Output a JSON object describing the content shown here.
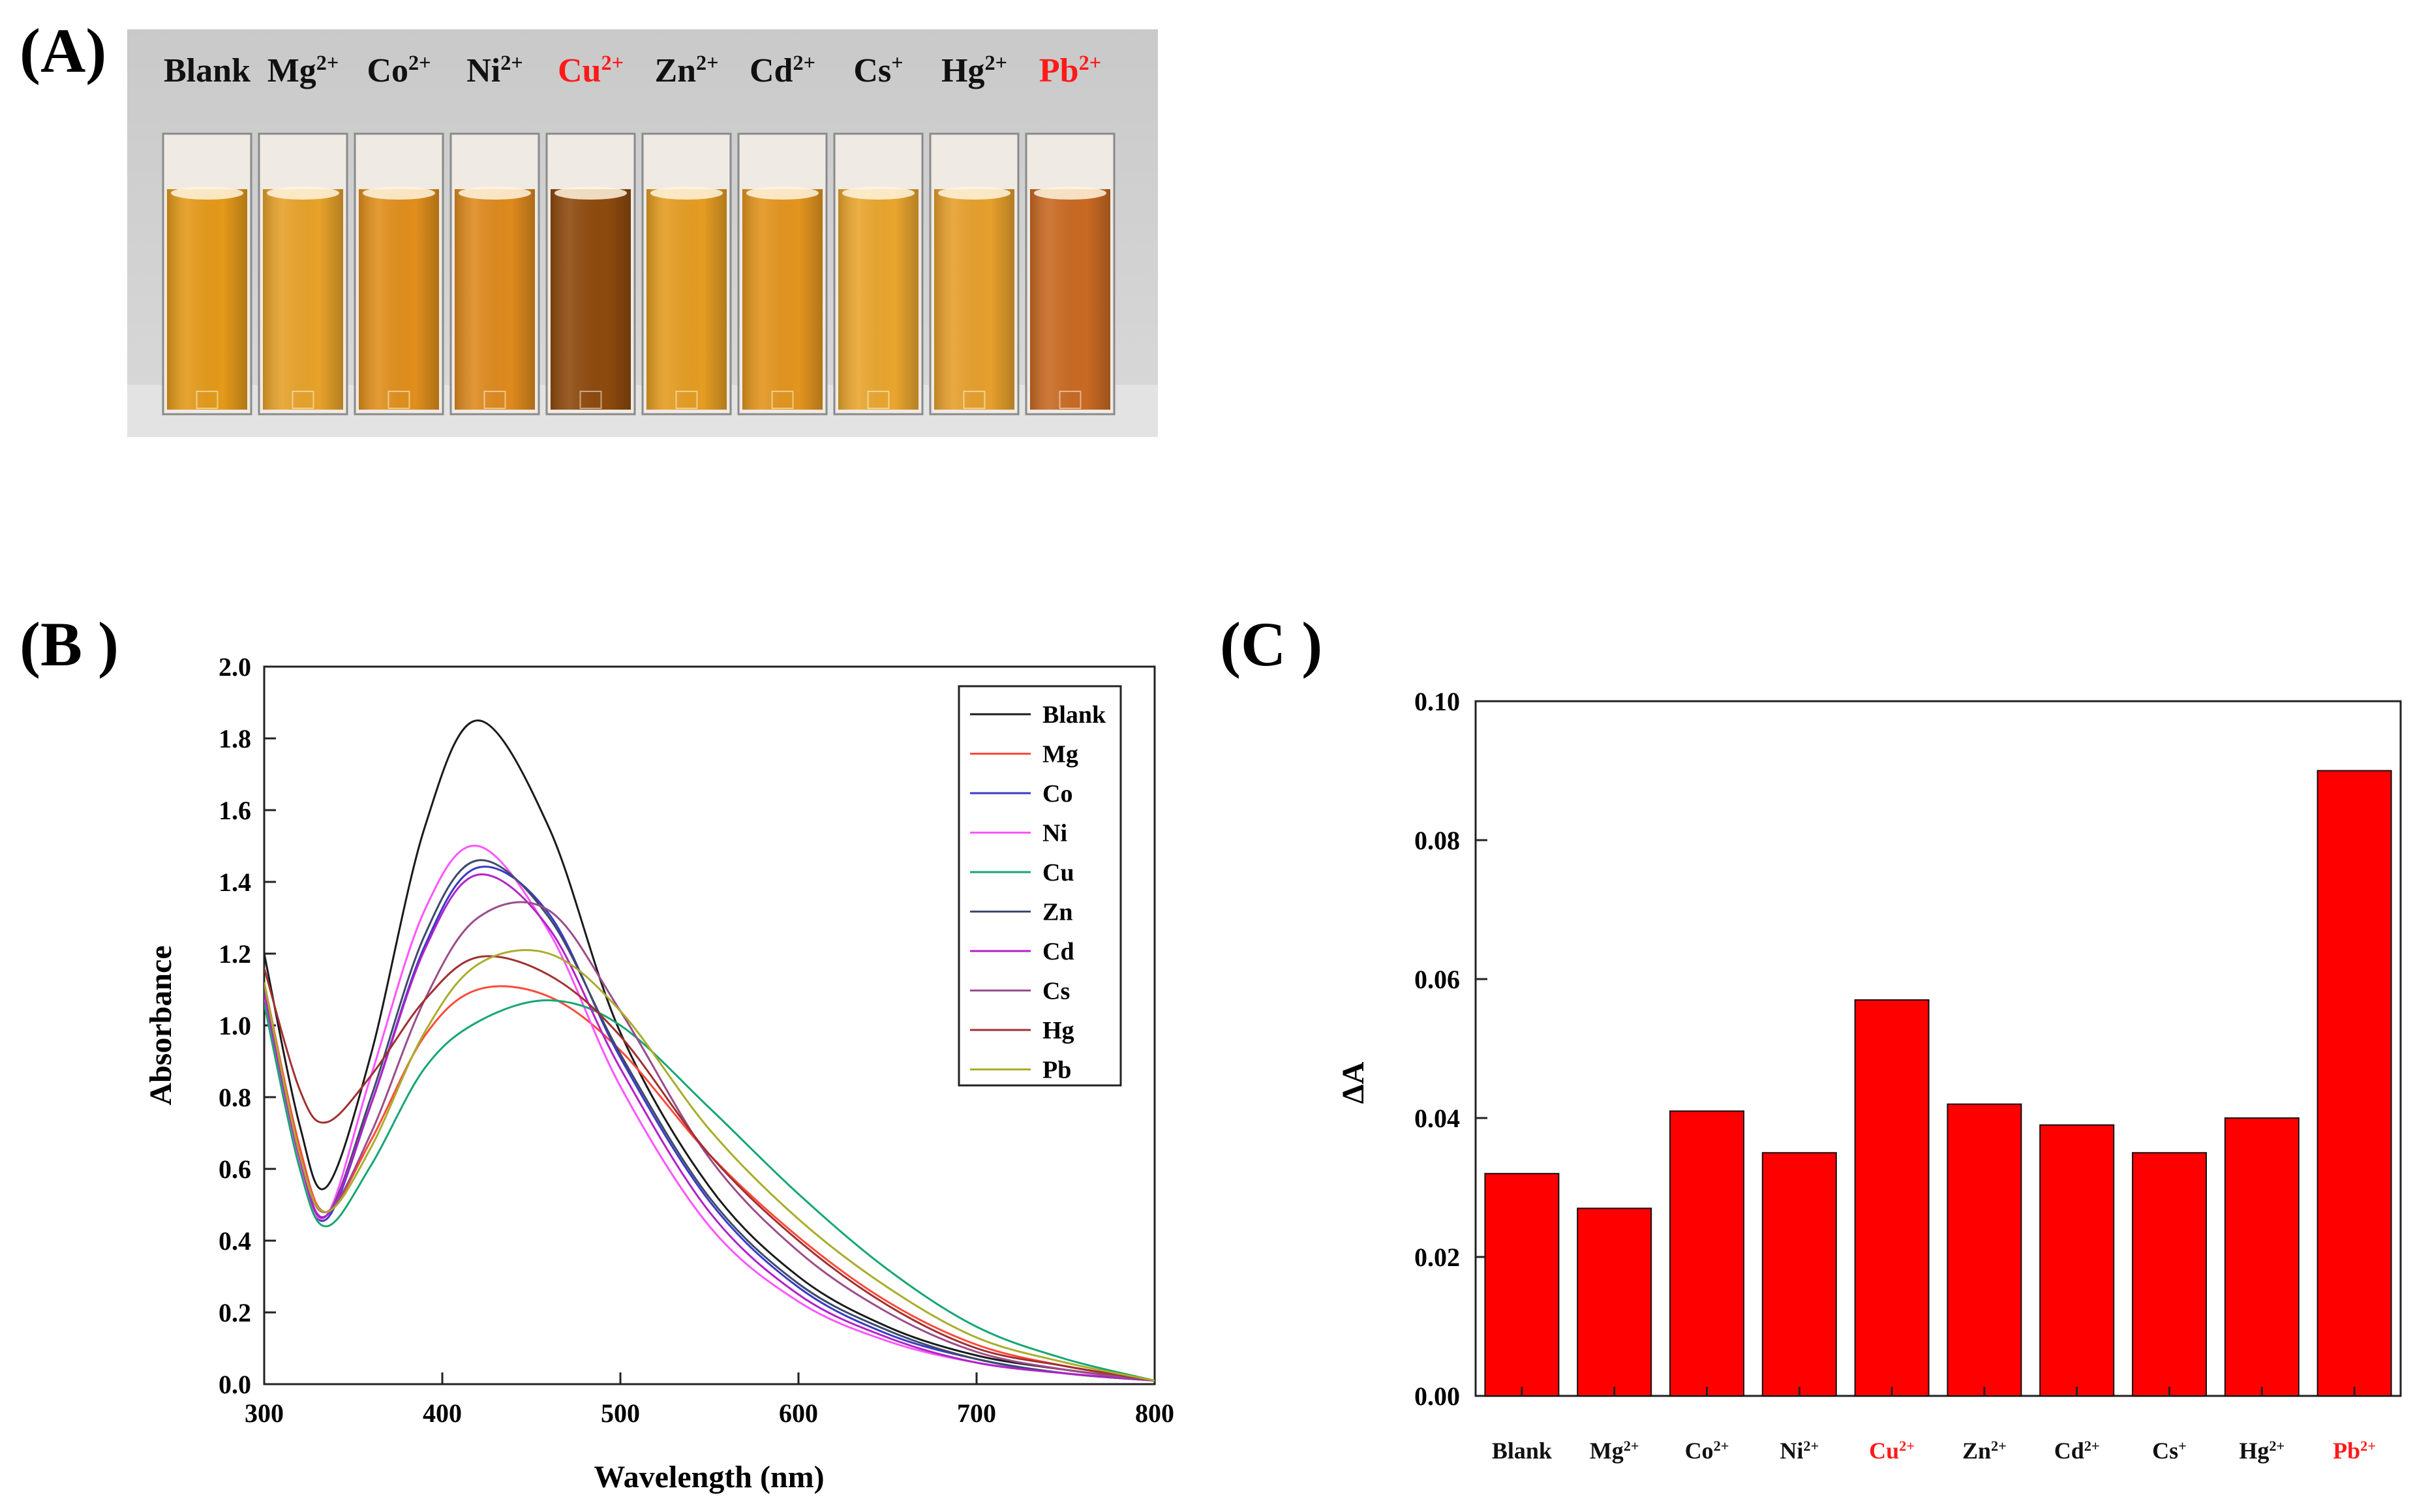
{
  "figure": {
    "panel_a_label": "(A)",
    "panel_b_label": "(B )",
    "panel_c_label": "(C )"
  },
  "photo": {
    "labels": [
      "Blank",
      "Mg",
      "Co",
      "Ni",
      "Cu",
      "Zn",
      "Cd",
      "Cs",
      "Hg",
      "Pb"
    ],
    "charges": [
      "",
      "2+",
      "2+",
      "2+",
      "2+",
      "2+",
      "2+",
      "+",
      "2+",
      "2+"
    ],
    "highlight_color": "#ff1a1a",
    "highlight_ions": [
      "Cu",
      "Pb"
    ],
    "cuvette_colors": [
      "#e49a1a",
      "#e7a22a",
      "#e08f1c",
      "#de8a1e",
      "#8e4a0e",
      "#e59d22",
      "#e3951e",
      "#e9a62e",
      "#e6a02c",
      "#c96a23"
    ]
  },
  "chart_data": [
    {
      "type": "line",
      "title": "",
      "xlabel": "Wavelength (nm)",
      "ylabel": "Absorbance",
      "xlim": [
        300,
        800
      ],
      "ylim": [
        0,
        2.0
      ],
      "xticks": [
        "300",
        "400",
        "500",
        "600",
        "700",
        "800"
      ],
      "yticks": [
        "0.0",
        "0.2",
        "0.4",
        "0.6",
        "0.8",
        "1.0",
        "1.2",
        "1.4",
        "1.6",
        "1.8",
        "2.0"
      ],
      "legend_position": "top-right",
      "x": [
        300,
        320,
        335,
        360,
        390,
        420,
        460,
        500,
        550,
        600,
        650,
        700,
        750,
        800
      ],
      "series": [
        {
          "name": "Blank",
          "color": "#1a1a1a",
          "values": [
            1.2,
            0.72,
            0.55,
            0.92,
            1.55,
            1.85,
            1.55,
            0.98,
            0.55,
            0.3,
            0.16,
            0.08,
            0.04,
            0.01
          ]
        },
        {
          "name": "Mg",
          "color": "#ff4a3a",
          "values": [
            1.12,
            0.66,
            0.48,
            0.68,
            0.97,
            1.1,
            1.08,
            0.93,
            0.64,
            0.41,
            0.23,
            0.11,
            0.05,
            0.01
          ]
        },
        {
          "name": "Co",
          "color": "#3a3ac8",
          "values": [
            1.1,
            0.62,
            0.46,
            0.78,
            1.22,
            1.44,
            1.31,
            0.91,
            0.51,
            0.27,
            0.14,
            0.07,
            0.03,
            0.01
          ]
        },
        {
          "name": "Ni",
          "color": "#ff55ff",
          "values": [
            1.08,
            0.62,
            0.47,
            0.86,
            1.32,
            1.5,
            1.26,
            0.83,
            0.44,
            0.23,
            0.12,
            0.06,
            0.03,
            0.01
          ]
        },
        {
          "name": "Cu",
          "color": "#17a673",
          "values": [
            1.06,
            0.6,
            0.44,
            0.61,
            0.88,
            1.01,
            1.07,
            1.0,
            0.77,
            0.53,
            0.32,
            0.16,
            0.07,
            0.01
          ]
        },
        {
          "name": "Zn",
          "color": "#3d4a6a",
          "values": [
            1.1,
            0.63,
            0.47,
            0.8,
            1.25,
            1.46,
            1.3,
            0.92,
            0.52,
            0.28,
            0.15,
            0.07,
            0.03,
            0.01
          ]
        },
        {
          "name": "Cd",
          "color": "#b222c8",
          "values": [
            1.09,
            0.63,
            0.47,
            0.78,
            1.21,
            1.42,
            1.27,
            0.88,
            0.48,
            0.25,
            0.13,
            0.06,
            0.03,
            0.01
          ]
        },
        {
          "name": "Cs",
          "color": "#9a4d8a",
          "values": [
            1.11,
            0.64,
            0.48,
            0.7,
            1.07,
            1.3,
            1.32,
            1.04,
            0.63,
            0.37,
            0.2,
            0.09,
            0.04,
            0.01
          ]
        },
        {
          "name": "Hg",
          "color": "#a03030",
          "values": [
            1.16,
            0.82,
            0.73,
            0.86,
            1.07,
            1.19,
            1.14,
            0.97,
            0.64,
            0.4,
            0.22,
            0.1,
            0.05,
            0.01
          ]
        },
        {
          "name": "Pb",
          "color": "#a9ad2b",
          "values": [
            1.12,
            0.64,
            0.48,
            0.66,
            0.98,
            1.17,
            1.2,
            1.04,
            0.71,
            0.46,
            0.27,
            0.13,
            0.06,
            0.01
          ]
        }
      ]
    },
    {
      "type": "bar",
      "title": "",
      "xlabel": "",
      "ylabel": "ΔA",
      "ylim": [
        0,
        0.1
      ],
      "yticks": [
        "0.00",
        "0.02",
        "0.04",
        "0.06",
        "0.08",
        "0.10"
      ],
      "categories": [
        "Blank",
        "Mg",
        "Co",
        "Ni",
        "Cu",
        "Zn",
        "Cd",
        "Cs",
        "Hg",
        "Pb"
      ],
      "charges": [
        "",
        "2+",
        "2+",
        "2+",
        "2+",
        "2+",
        "2+",
        "+",
        "2+",
        "2+"
      ],
      "values": [
        0.032,
        0.027,
        0.041,
        0.035,
        0.057,
        0.042,
        0.039,
        0.035,
        0.04,
        0.09
      ],
      "bar_color": "#ff0000",
      "highlight_color": "#ff1a1a",
      "highlight_categories": [
        "Cu",
        "Pb"
      ]
    }
  ]
}
